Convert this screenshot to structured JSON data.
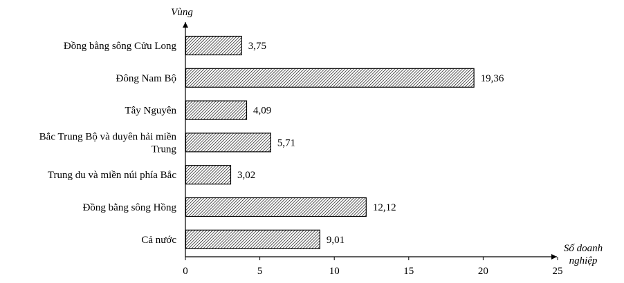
{
  "chart_data": {
    "type": "bar",
    "orientation": "horizontal",
    "categories": [
      "Cả nước",
      "Đồng bằng sông Hồng",
      "Trung du và miền núi phía Bắc",
      "Bắc Trung Bộ và duyên hải miền Trung",
      "Tây Nguyên",
      "Đông Nam Bộ",
      "Đồng bằng sông Cửu Long"
    ],
    "category_lines": [
      [
        "Cả nước"
      ],
      [
        "Đồng bằng sông Hồng"
      ],
      [
        "Trung du và miền núi phía Bắc"
      ],
      [
        "Bắc Trung Bộ và duyên hải miền",
        "Trung"
      ],
      [
        "Tây Nguyên"
      ],
      [
        "Đông Nam Bộ"
      ],
      [
        "Đồng bằng sông Cửu Long"
      ]
    ],
    "values": [
      9.01,
      12.12,
      3.02,
      5.71,
      4.09,
      19.36,
      3.75
    ],
    "value_labels": [
      "9,01",
      "12,12",
      "3,02",
      "5,71",
      "4,09",
      "19,36",
      "3,75"
    ],
    "xlim": [
      0,
      25
    ],
    "xticks": [
      0,
      5,
      10,
      15,
      20,
      25
    ],
    "xlabel_lines": [
      "Số doanh",
      "nghiệp"
    ],
    "ylabel": "Vùng",
    "bar_pattern": "diagonal hatch",
    "grid": false
  }
}
